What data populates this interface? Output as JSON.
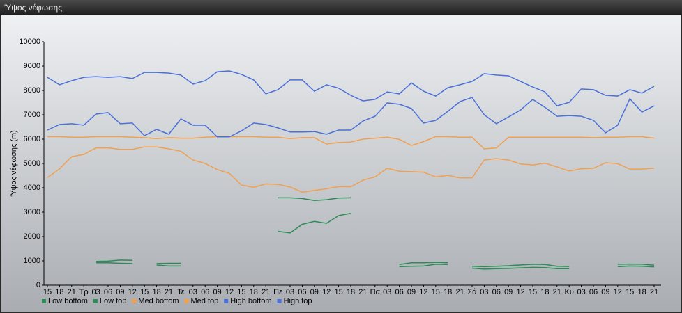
{
  "window": {
    "title": "Ύψος νέφωσης"
  },
  "chart_data": {
    "type": "line",
    "y_label": "Ύψος νέφωσης (m)",
    "ylim": [
      0,
      10000
    ],
    "yticks": [
      0,
      1000,
      2000,
      3000,
      4000,
      5000,
      6000,
      7000,
      8000,
      9000,
      10000
    ],
    "grid": false,
    "legend": "bottom-left",
    "categories": [
      "15",
      "18",
      "21",
      "Τρ",
      "03",
      "06",
      "09",
      "12",
      "15",
      "18",
      "21",
      "Τε",
      "03",
      "06",
      "09",
      "12",
      "15",
      "18",
      "21",
      "Πε",
      "03",
      "06",
      "09",
      "12",
      "15",
      "18",
      "21",
      "Πα",
      "03",
      "06",
      "09",
      "12",
      "15",
      "18",
      "21",
      "Σά",
      "03",
      "06",
      "09",
      "12",
      "15",
      "18",
      "21",
      "Κυ",
      "03",
      "06",
      "09",
      "12",
      "15",
      "18",
      "21"
    ],
    "series": [
      {
        "name": "Low bottom",
        "color": "#2e8b57",
        "values": [
          null,
          null,
          null,
          null,
          920,
          920,
          900,
          890,
          null,
          830,
          790,
          790,
          null,
          null,
          null,
          null,
          null,
          null,
          null,
          2210,
          2150,
          2500,
          2620,
          2540,
          2860,
          2950,
          null,
          null,
          null,
          760,
          780,
          790,
          860,
          850,
          null,
          700,
          660,
          680,
          690,
          710,
          730,
          720,
          680,
          680,
          null,
          null,
          null,
          760,
          790,
          780,
          750
        ]
      },
      {
        "name": "Low top",
        "color": "#2e8b57",
        "values": [
          null,
          null,
          null,
          null,
          980,
          990,
          1030,
          1020,
          null,
          890,
          900,
          900,
          null,
          null,
          null,
          null,
          null,
          null,
          null,
          3590,
          3590,
          3560,
          3480,
          3510,
          3580,
          3590,
          null,
          null,
          null,
          850,
          920,
          920,
          940,
          920,
          null,
          780,
          760,
          780,
          800,
          830,
          860,
          850,
          780,
          770,
          null,
          null,
          null,
          860,
          870,
          860,
          820
        ]
      },
      {
        "name": "Med bottom",
        "color": "#f0a050",
        "values": [
          4420,
          4780,
          5280,
          5370,
          5640,
          5640,
          5580,
          5580,
          5680,
          5680,
          5600,
          5500,
          5140,
          5000,
          4750,
          4590,
          4110,
          4020,
          4160,
          4140,
          4030,
          3820,
          3890,
          3960,
          4050,
          4040,
          4310,
          4450,
          4800,
          4680,
          4660,
          4640,
          4450,
          4510,
          4410,
          4410,
          5140,
          5200,
          5140,
          4980,
          4940,
          5010,
          4860,
          4690,
          4780,
          4800,
          5030,
          4990,
          4770,
          4770,
          4810
        ]
      },
      {
        "name": "Med top",
        "color": "#f0a050",
        "values": [
          6100,
          6100,
          6080,
          6080,
          6100,
          6100,
          6100,
          6080,
          6060,
          6020,
          6060,
          6040,
          6040,
          6080,
          6100,
          6100,
          6100,
          6100,
          6080,
          6080,
          6020,
          6060,
          6060,
          5800,
          5860,
          5880,
          6000,
          6040,
          6080,
          5990,
          5740,
          5900,
          6100,
          6100,
          6080,
          6080,
          5600,
          5640,
          6080,
          6080,
          6080,
          6080,
          6080,
          6080,
          6080,
          6060,
          6080,
          6080,
          6100,
          6100,
          6040
        ]
      },
      {
        "name": "High bottom",
        "color": "#4a6fd8",
        "values": [
          6370,
          6600,
          6630,
          6570,
          7030,
          7090,
          6630,
          6660,
          6140,
          6400,
          6200,
          6830,
          6570,
          6570,
          6090,
          6090,
          6340,
          6660,
          6600,
          6460,
          6290,
          6290,
          6310,
          6200,
          6370,
          6370,
          6740,
          6940,
          7490,
          7430,
          7260,
          6660,
          6770,
          7140,
          7540,
          7710,
          7000,
          6630,
          6910,
          7200,
          7630,
          7310,
          6940,
          6970,
          6940,
          6770,
          6260,
          6570,
          7660,
          7110,
          7370
        ]
      },
      {
        "name": "High top",
        "color": "#4a6fd8",
        "values": [
          8540,
          8230,
          8400,
          8540,
          8570,
          8540,
          8570,
          8490,
          8740,
          8740,
          8710,
          8630,
          8260,
          8400,
          8770,
          8800,
          8660,
          8430,
          7860,
          8030,
          8430,
          8430,
          7970,
          8230,
          8090,
          7800,
          7570,
          7630,
          7940,
          7860,
          8310,
          7970,
          7770,
          8110,
          8230,
          8370,
          8690,
          8630,
          8600,
          8370,
          8140,
          7940,
          7370,
          7510,
          8060,
          8030,
          7800,
          7770,
          8030,
          7890,
          8170
        ]
      }
    ]
  }
}
